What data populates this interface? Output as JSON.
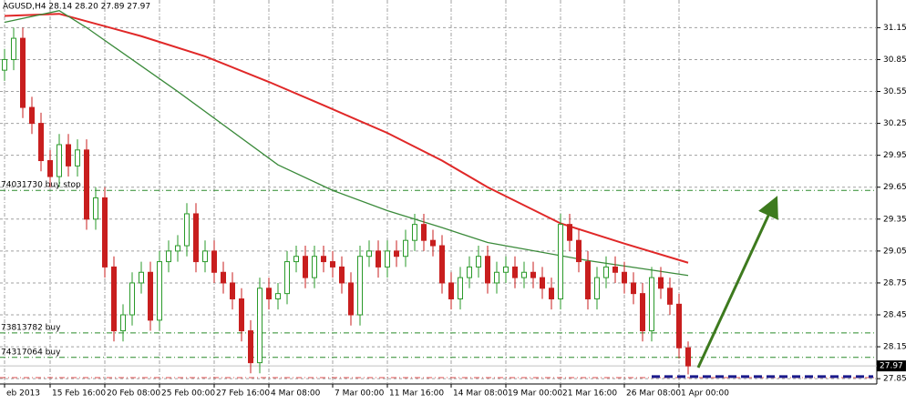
{
  "chart_data": {
    "type": "candlestick",
    "title": "AGUSD,H4 28.14 28.20 27.89 27.97",
    "categories": [
      "eb 2013",
      null,
      null,
      null,
      null,
      "15 Feb 16:00",
      null,
      null,
      null,
      null,
      null,
      "20 Feb 08:00",
      null,
      null,
      null,
      null,
      null,
      "25 Feb 00:00",
      null,
      null,
      null,
      null,
      null,
      "27 Feb 16:00",
      null,
      null,
      null,
      null,
      null,
      "4 Mar 08:00",
      null,
      null,
      null,
      null,
      null,
      null,
      "7 Mar 00:00",
      null,
      null,
      null,
      null,
      null,
      "11 Mar 16:00",
      null,
      null,
      null,
      null,
      null,
      null,
      "14 Mar 08:00",
      null,
      null,
      null,
      null,
      null,
      "19 Mar 00:00",
      null,
      null,
      null,
      null,
      null,
      "21 Mar 16:00",
      null,
      null,
      null,
      null,
      null,
      null,
      "26 Mar 08:00",
      null,
      null,
      null,
      null,
      null,
      "1 Apr 00:00",
      null
    ],
    "open": [
      30.75,
      30.85,
      31.05,
      30.4,
      30.25,
      29.9,
      29.75,
      30.05,
      29.85,
      30.0,
      29.35,
      29.55,
      28.9,
      28.3,
      28.45,
      28.75,
      28.85,
      28.4,
      28.95,
      29.05,
      29.1,
      29.4,
      28.95,
      29.05,
      28.85,
      28.75,
      28.6,
      28.3,
      28.0,
      28.7,
      28.6,
      28.65,
      28.95,
      29.0,
      28.8,
      29.0,
      28.95,
      28.9,
      28.75,
      28.45,
      29.0,
      29.05,
      28.9,
      29.05,
      29.0,
      29.15,
      29.3,
      29.15,
      29.1,
      28.75,
      28.6,
      28.8,
      28.9,
      29.0,
      28.75,
      28.85,
      28.9,
      28.8,
      28.85,
      28.8,
      28.7,
      28.6,
      29.3,
      29.15,
      28.95,
      28.6,
      28.8,
      28.9,
      28.85,
      28.75,
      28.65,
      28.3,
      28.8,
      28.7,
      28.55,
      28.14
    ],
    "high": [
      30.95,
      31.15,
      31.15,
      30.5,
      30.35,
      30.0,
      30.15,
      30.15,
      30.1,
      30.1,
      29.65,
      29.65,
      29.0,
      28.55,
      28.85,
      28.95,
      28.95,
      29.05,
      29.15,
      29.2,
      29.5,
      29.5,
      29.15,
      29.15,
      28.95,
      28.85,
      28.7,
      28.4,
      28.8,
      28.8,
      28.75,
      29.05,
      29.1,
      29.1,
      29.1,
      29.1,
      29.05,
      29.0,
      28.85,
      29.1,
      29.15,
      29.15,
      29.15,
      29.15,
      29.25,
      29.4,
      29.4,
      29.25,
      29.2,
      28.85,
      28.9,
      29.0,
      29.1,
      29.1,
      28.95,
      29.0,
      29.0,
      28.95,
      28.95,
      28.9,
      28.8,
      29.4,
      29.4,
      29.25,
      29.05,
      28.9,
      29.0,
      29.0,
      28.95,
      28.85,
      28.75,
      28.9,
      28.9,
      28.8,
      28.65,
      28.2
    ],
    "low": [
      30.65,
      30.75,
      30.3,
      30.15,
      29.8,
      29.65,
      29.65,
      29.75,
      29.75,
      29.25,
      29.25,
      28.8,
      28.2,
      28.2,
      28.35,
      28.65,
      28.3,
      28.3,
      28.85,
      28.95,
      29.0,
      28.85,
      28.85,
      28.75,
      28.65,
      28.5,
      28.2,
      27.9,
      27.9,
      28.5,
      28.5,
      28.55,
      28.85,
      28.7,
      28.7,
      28.85,
      28.8,
      28.65,
      28.35,
      28.35,
      28.9,
      28.8,
      28.8,
      28.9,
      28.9,
      29.05,
      29.05,
      29.0,
      28.65,
      28.5,
      28.5,
      28.7,
      28.8,
      28.65,
      28.65,
      28.75,
      28.7,
      28.7,
      28.7,
      28.6,
      28.5,
      28.5,
      29.05,
      28.85,
      28.5,
      28.5,
      28.7,
      28.75,
      28.65,
      28.55,
      28.2,
      28.2,
      28.6,
      28.45,
      28.04,
      27.89
    ],
    "close": [
      30.85,
      31.05,
      30.4,
      30.25,
      29.9,
      29.75,
      30.05,
      29.85,
      30.0,
      29.35,
      29.55,
      28.9,
      28.3,
      28.45,
      28.75,
      28.85,
      28.4,
      28.95,
      29.05,
      29.1,
      29.4,
      28.95,
      29.05,
      28.85,
      28.75,
      28.6,
      28.3,
      28.0,
      28.7,
      28.6,
      28.65,
      28.95,
      29.0,
      28.8,
      29.0,
      28.95,
      28.9,
      28.75,
      28.45,
      29.0,
      29.05,
      28.9,
      29.05,
      29.0,
      29.15,
      29.3,
      29.15,
      29.1,
      28.75,
      28.6,
      28.8,
      28.9,
      29.0,
      28.75,
      28.85,
      28.9,
      28.8,
      28.85,
      28.8,
      28.7,
      28.6,
      29.3,
      29.15,
      28.95,
      28.6,
      28.8,
      28.9,
      28.85,
      28.75,
      28.65,
      28.3,
      28.8,
      28.7,
      28.55,
      28.14,
      27.97
    ],
    "up_color": "#2a9a2a",
    "down_color": "#c81e1e",
    "moving_averages": [
      {
        "color": "#e02828",
        "x": [
          0,
          6,
          15,
          22,
          29,
          35,
          42,
          48,
          53,
          61,
          68,
          75
        ],
        "values": [
          31.26,
          31.28,
          31.07,
          30.88,
          30.64,
          30.42,
          30.16,
          29.9,
          29.65,
          29.31,
          29.12,
          28.94
        ]
      },
      {
        "color": "#3a8a3a",
        "x": [
          0,
          6,
          9,
          19,
          30,
          36,
          42,
          48,
          53,
          64,
          75
        ],
        "values": [
          31.2,
          31.31,
          31.15,
          30.55,
          29.86,
          29.62,
          29.43,
          29.27,
          29.13,
          28.96,
          28.82
        ]
      }
    ],
    "levels": [
      {
        "label": "74031730 buy stop",
        "value": 29.62
      },
      {
        "label": "73813782 buy",
        "value": 28.28
      },
      {
        "label": "74317064 buy",
        "value": 28.05
      }
    ],
    "stop_line": {
      "value": 27.86,
      "color": "#e05050"
    },
    "target_line": {
      "value": 27.87,
      "color": "#1a1a8c"
    },
    "price_label": {
      "label": "27.97",
      "value": 27.97
    },
    "ylim": [
      27.8,
      31.41
    ],
    "yticks": [
      31.15,
      30.85,
      30.55,
      30.25,
      29.95,
      29.65,
      29.35,
      29.05,
      28.75,
      28.45,
      28.15,
      27.85
    ],
    "grid": true
  }
}
